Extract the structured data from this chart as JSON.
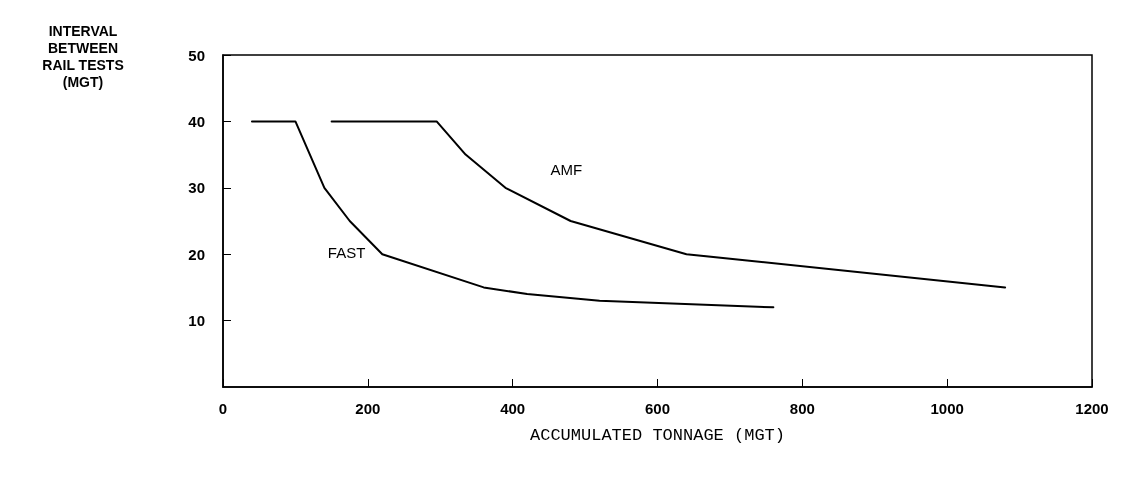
{
  "chart_data": {
    "type": "line",
    "xlabel": "ACCUMULATED TONNAGE (MGT)",
    "ylabel": "INTERVAL\nBETWEEN\nRAIL TESTS\n(MGT)",
    "series": [
      {
        "name": "FAST",
        "color": "#000000",
        "x": [
          40,
          100,
          140,
          175,
          220,
          360,
          420,
          520,
          760
        ],
        "values": [
          40,
          40,
          30,
          25,
          20,
          15,
          14,
          13,
          12
        ]
      },
      {
        "name": "AMF",
        "color": "#000000",
        "x": [
          150,
          295,
          335,
          390,
          480,
          640,
          1080
        ],
        "values": [
          40,
          40,
          35,
          30,
          25,
          20,
          15
        ]
      }
    ],
    "xlim": [
      0,
      1200
    ],
    "xticks": [
      0,
      200,
      400,
      600,
      800,
      1000,
      1200
    ],
    "ylim": [
      0,
      50
    ],
    "yticks": [
      10,
      20,
      30,
      40,
      50
    ],
    "grid": false,
    "marker": "none",
    "line_style": "solid"
  }
}
